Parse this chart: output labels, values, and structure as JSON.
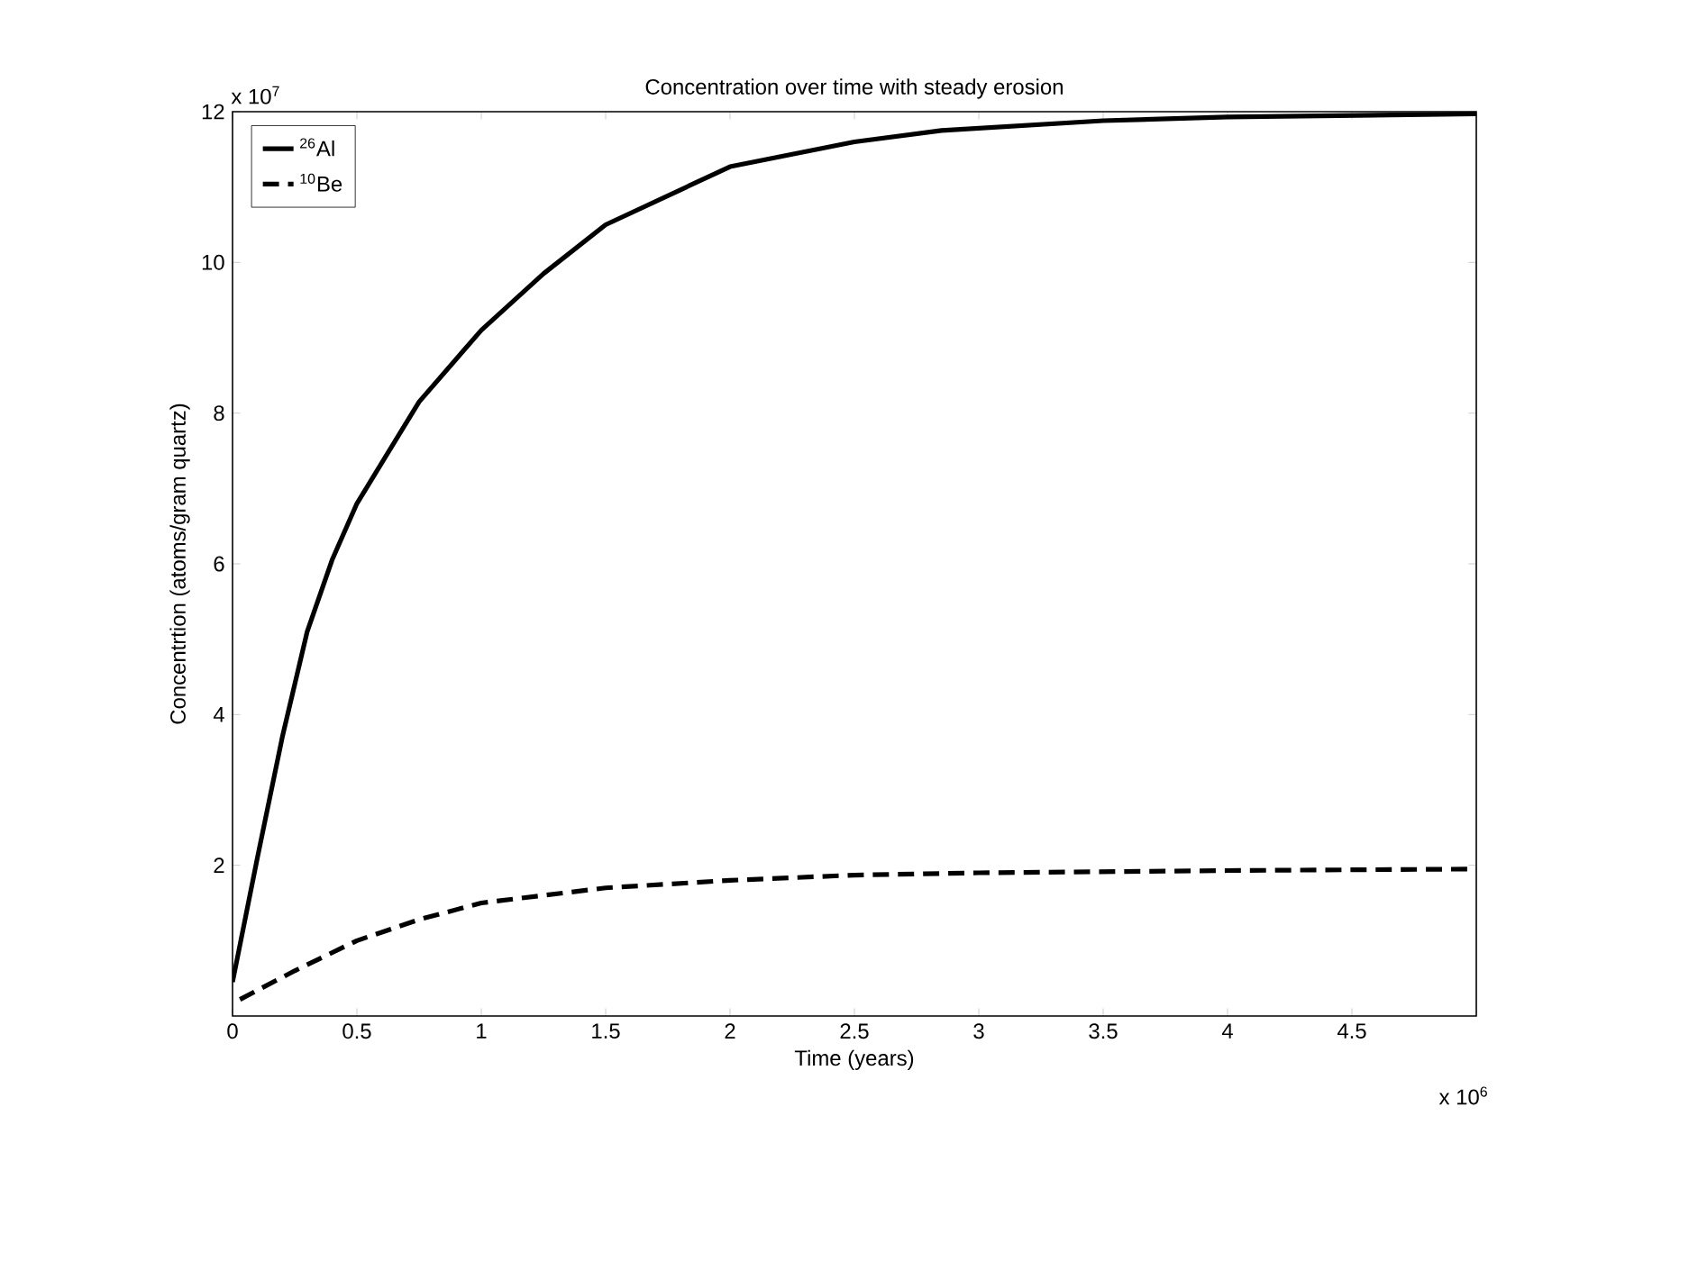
{
  "chart_data": {
    "type": "line",
    "title": "Concentration over time with steady erosion",
    "xlabel": "Time (years)",
    "ylabel": "Concentrtion (atoms/gram quartz)",
    "annotations": [
      "x 10$^{7}$",
      "x 10$^{6}$"
    ],
    "xlim": [
      0,
      5
    ],
    "ylim": [
      0,
      12
    ],
    "xticks": [
      0,
      0.5,
      1,
      1.5,
      2,
      2.5,
      3,
      3.5,
      4,
      4.5
    ],
    "yticks": [
      2,
      4,
      6,
      8,
      10,
      12
    ],
    "legend": "top left",
    "grid": false,
    "marker": "none",
    "series": [
      {
        "name": "$^{26}$Al",
        "color": "#000000",
        "line_style": "solid",
        "x": [
          0,
          0.1,
          0.2,
          0.3,
          0.4,
          0.5,
          0.75,
          1.0,
          1.25,
          1.5,
          2.0,
          2.5,
          2.85,
          3.5,
          4.0,
          5.0
        ],
        "values": [
          0.45,
          2.1,
          3.7,
          5.1,
          6.05,
          6.8,
          8.15,
          9.1,
          9.85,
          10.5,
          11.27,
          11.6,
          11.75,
          11.88,
          11.93,
          11.97
        ]
      },
      {
        "name": "$^{10}$Be",
        "color": "#000000",
        "line_style": "dashed",
        "x": [
          0.03,
          0.25,
          0.5,
          0.75,
          1.0,
          1.5,
          2.0,
          2.5,
          3.0,
          4.0,
          5.0
        ],
        "values": [
          0.22,
          0.6,
          1.0,
          1.28,
          1.5,
          1.7,
          1.8,
          1.87,
          1.9,
          1.93,
          1.95
        ]
      }
    ]
  }
}
